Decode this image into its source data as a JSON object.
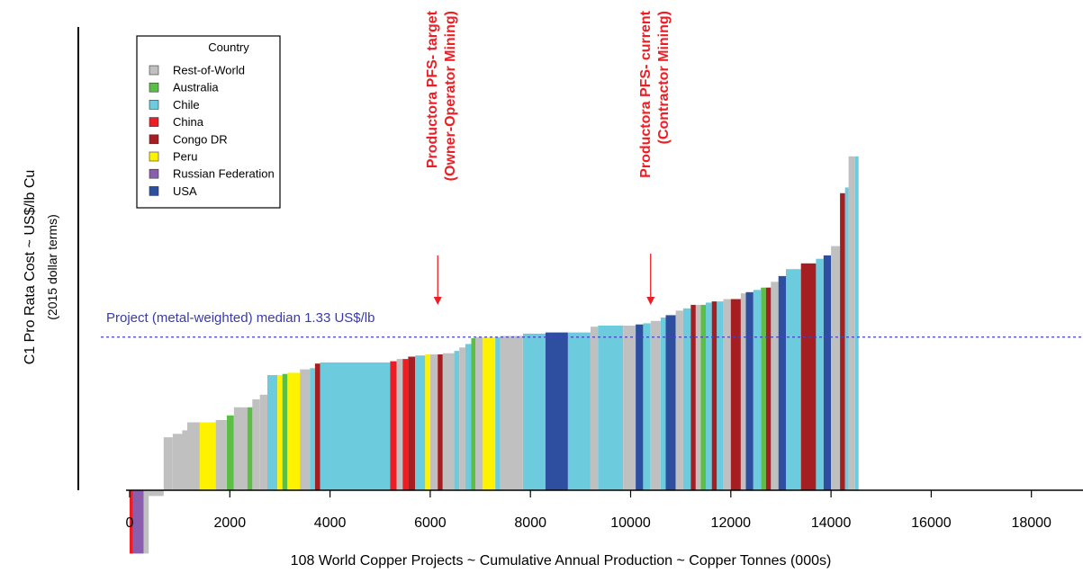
{
  "chart_data": {
    "type": "bar",
    "subtype": "cost-curve (variable-width bars)",
    "title": "",
    "xlabel": "108 World Copper Projects ~ Cumulative Annual Production ~ Copper Tonnes (000s)",
    "ylabel": "C1 Pro Rata Cost ~ US$/lb Cu",
    "ylabel_sub": "(2015 dollar terms)",
    "xlim": [
      0,
      19000
    ],
    "xticks": [
      0,
      2000,
      4000,
      6000,
      8000,
      10000,
      12000,
      14000,
      16000,
      18000
    ],
    "ylim": [
      -0.55,
      3.5
    ],
    "y_tick_labels_shown": false,
    "grid": false,
    "legend": {
      "title": "Country",
      "position": "top-left",
      "entries": [
        {
          "name": "Rest-of-World",
          "color": "#c0c0c0"
        },
        {
          "name": "Australia",
          "color": "#5cbf45"
        },
        {
          "name": "Chile",
          "color": "#6ccbdc"
        },
        {
          "name": "China",
          "color": "#ee1d23"
        },
        {
          "name": "Congo DR",
          "color": "#a51e22"
        },
        {
          "name": "Peru",
          "color": "#fff200"
        },
        {
          "name": "Russian Federation",
          "color": "#8a5eac"
        },
        {
          "name": "USA",
          "color": "#2e4f9f"
        }
      ]
    },
    "median_line": {
      "label": "Project (metal-weighted) median 1.33  US$/lb",
      "value": 1.33,
      "color": "#3333aa"
    },
    "annotations": [
      {
        "label_line1": "Productora PFS- target",
        "label_line2": "(Owner-Operator Mining)",
        "x": 6150,
        "color": "#ee1d23"
      },
      {
        "label_line1": "Productora PFS- current",
        "label_line2": "(Contractor Mining)",
        "x": 10400,
        "color": "#ee1d23"
      }
    ],
    "bars": [
      {
        "x0": 0,
        "x1": 70,
        "y": -0.55,
        "country": "China"
      },
      {
        "x0": 70,
        "x1": 280,
        "y": -0.55,
        "country": "Russian Federation"
      },
      {
        "x0": 280,
        "x1": 380,
        "y": -0.55,
        "country": "Rest-of-World"
      },
      {
        "x0": 380,
        "x1": 680,
        "y": -0.05,
        "country": "Rest-of-World"
      },
      {
        "x0": 680,
        "x1": 860,
        "y": 0.46,
        "country": "Rest-of-World"
      },
      {
        "x0": 860,
        "x1": 1050,
        "y": 0.49,
        "country": "Rest-of-World"
      },
      {
        "x0": 1050,
        "x1": 1150,
        "y": 0.52,
        "country": "Rest-of-World"
      },
      {
        "x0": 1150,
        "x1": 1400,
        "y": 0.59,
        "country": "Rest-of-World"
      },
      {
        "x0": 1400,
        "x1": 1720,
        "y": 0.59,
        "country": "Peru"
      },
      {
        "x0": 1720,
        "x1": 1940,
        "y": 0.61,
        "country": "Rest-of-World"
      },
      {
        "x0": 1940,
        "x1": 2080,
        "y": 0.65,
        "country": "Australia"
      },
      {
        "x0": 2080,
        "x1": 2350,
        "y": 0.72,
        "country": "Rest-of-World"
      },
      {
        "x0": 2350,
        "x1": 2450,
        "y": 0.72,
        "country": "Australia"
      },
      {
        "x0": 2450,
        "x1": 2600,
        "y": 0.79,
        "country": "Rest-of-World"
      },
      {
        "x0": 2600,
        "x1": 2750,
        "y": 0.83,
        "country": "Rest-of-World"
      },
      {
        "x0": 2750,
        "x1": 2950,
        "y": 1.0,
        "country": "Chile"
      },
      {
        "x0": 2950,
        "x1": 3050,
        "y": 1.0,
        "country": "Peru"
      },
      {
        "x0": 3050,
        "x1": 3150,
        "y": 1.01,
        "country": "Australia"
      },
      {
        "x0": 3150,
        "x1": 3400,
        "y": 1.02,
        "country": "Peru"
      },
      {
        "x0": 3400,
        "x1": 3600,
        "y": 1.05,
        "country": "Rest-of-World"
      },
      {
        "x0": 3600,
        "x1": 3700,
        "y": 1.06,
        "country": "Chile"
      },
      {
        "x0": 3700,
        "x1": 3800,
        "y": 1.1,
        "country": "Congo DR"
      },
      {
        "x0": 3800,
        "x1": 5200,
        "y": 1.11,
        "country": "Chile"
      },
      {
        "x0": 5200,
        "x1": 5330,
        "y": 1.12,
        "country": "China"
      },
      {
        "x0": 5330,
        "x1": 5450,
        "y": 1.14,
        "country": "Rest-of-World"
      },
      {
        "x0": 5450,
        "x1": 5560,
        "y": 1.14,
        "country": "China"
      },
      {
        "x0": 5560,
        "x1": 5700,
        "y": 1.16,
        "country": "Congo DR"
      },
      {
        "x0": 5700,
        "x1": 5900,
        "y": 1.17,
        "country": "Chile"
      },
      {
        "x0": 5900,
        "x1": 6000,
        "y": 1.18,
        "country": "Peru"
      },
      {
        "x0": 6000,
        "x1": 6150,
        "y": 1.18,
        "country": "Rest-of-World"
      },
      {
        "x0": 6150,
        "x1": 6250,
        "y": 1.18,
        "country": "Congo DR"
      },
      {
        "x0": 6250,
        "x1": 6480,
        "y": 1.19,
        "country": "Rest-of-World"
      },
      {
        "x0": 6480,
        "x1": 6580,
        "y": 1.21,
        "country": "Chile"
      },
      {
        "x0": 6580,
        "x1": 6700,
        "y": 1.24,
        "country": "Rest-of-World"
      },
      {
        "x0": 6700,
        "x1": 6820,
        "y": 1.27,
        "country": "Chile"
      },
      {
        "x0": 6820,
        "x1": 6900,
        "y": 1.32,
        "country": "Australia"
      },
      {
        "x0": 6900,
        "x1": 7050,
        "y": 1.33,
        "country": "Rest-of-World"
      },
      {
        "x0": 7050,
        "x1": 7300,
        "y": 1.33,
        "country": "Peru"
      },
      {
        "x0": 7300,
        "x1": 7400,
        "y": 1.33,
        "country": "Chile"
      },
      {
        "x0": 7400,
        "x1": 7850,
        "y": 1.34,
        "country": "Rest-of-World"
      },
      {
        "x0": 7850,
        "x1": 8300,
        "y": 1.36,
        "country": "Chile"
      },
      {
        "x0": 8300,
        "x1": 8750,
        "y": 1.37,
        "country": "USA"
      },
      {
        "x0": 8750,
        "x1": 9200,
        "y": 1.37,
        "country": "Chile"
      },
      {
        "x0": 9200,
        "x1": 9350,
        "y": 1.42,
        "country": "Rest-of-World"
      },
      {
        "x0": 9350,
        "x1": 9850,
        "y": 1.43,
        "country": "Chile"
      },
      {
        "x0": 9850,
        "x1": 10100,
        "y": 1.43,
        "country": "Rest-of-World"
      },
      {
        "x0": 10100,
        "x1": 10250,
        "y": 1.44,
        "country": "USA"
      },
      {
        "x0": 10250,
        "x1": 10400,
        "y": 1.45,
        "country": "Chile"
      },
      {
        "x0": 10400,
        "x1": 10600,
        "y": 1.47,
        "country": "Rest-of-World"
      },
      {
        "x0": 10600,
        "x1": 10700,
        "y": 1.5,
        "country": "Chile"
      },
      {
        "x0": 10700,
        "x1": 10900,
        "y": 1.52,
        "country": "USA"
      },
      {
        "x0": 10900,
        "x1": 11050,
        "y": 1.56,
        "country": "Rest-of-World"
      },
      {
        "x0": 11050,
        "x1": 11200,
        "y": 1.58,
        "country": "Chile"
      },
      {
        "x0": 11200,
        "x1": 11300,
        "y": 1.61,
        "country": "Congo DR"
      },
      {
        "x0": 11300,
        "x1": 11400,
        "y": 1.61,
        "country": "Rest-of-World"
      },
      {
        "x0": 11400,
        "x1": 11500,
        "y": 1.61,
        "country": "Australia"
      },
      {
        "x0": 11500,
        "x1": 11620,
        "y": 1.63,
        "country": "Chile"
      },
      {
        "x0": 11620,
        "x1": 11720,
        "y": 1.64,
        "country": "Congo DR"
      },
      {
        "x0": 11720,
        "x1": 11850,
        "y": 1.64,
        "country": "Chile"
      },
      {
        "x0": 11850,
        "x1": 12000,
        "y": 1.66,
        "country": "Rest-of-World"
      },
      {
        "x0": 12000,
        "x1": 12200,
        "y": 1.66,
        "country": "Congo DR"
      },
      {
        "x0": 12200,
        "x1": 12300,
        "y": 1.71,
        "country": "Rest-of-World"
      },
      {
        "x0": 12300,
        "x1": 12450,
        "y": 1.72,
        "country": "USA"
      },
      {
        "x0": 12450,
        "x1": 12600,
        "y": 1.74,
        "country": "Chile"
      },
      {
        "x0": 12600,
        "x1": 12700,
        "y": 1.76,
        "country": "Australia"
      },
      {
        "x0": 12700,
        "x1": 12800,
        "y": 1.76,
        "country": "Congo DR"
      },
      {
        "x0": 12800,
        "x1": 12950,
        "y": 1.81,
        "country": "Rest-of-World"
      },
      {
        "x0": 12950,
        "x1": 13100,
        "y": 1.86,
        "country": "USA"
      },
      {
        "x0": 13100,
        "x1": 13400,
        "y": 1.92,
        "country": "Chile"
      },
      {
        "x0": 13400,
        "x1": 13700,
        "y": 1.97,
        "country": "Congo DR"
      },
      {
        "x0": 13700,
        "x1": 13850,
        "y": 2.01,
        "country": "Chile"
      },
      {
        "x0": 13850,
        "x1": 14000,
        "y": 2.04,
        "country": "USA"
      },
      {
        "x0": 14000,
        "x1": 14180,
        "y": 2.12,
        "country": "Rest-of-World"
      },
      {
        "x0": 14180,
        "x1": 14280,
        "y": 2.58,
        "country": "Congo DR"
      },
      {
        "x0": 14280,
        "x1": 14350,
        "y": 2.63,
        "country": "Chile"
      },
      {
        "x0": 14350,
        "x1": 14480,
        "y": 2.9,
        "country": "Rest-of-World"
      },
      {
        "x0": 14480,
        "x1": 14550,
        "y": 2.9,
        "country": "Chile"
      }
    ]
  }
}
